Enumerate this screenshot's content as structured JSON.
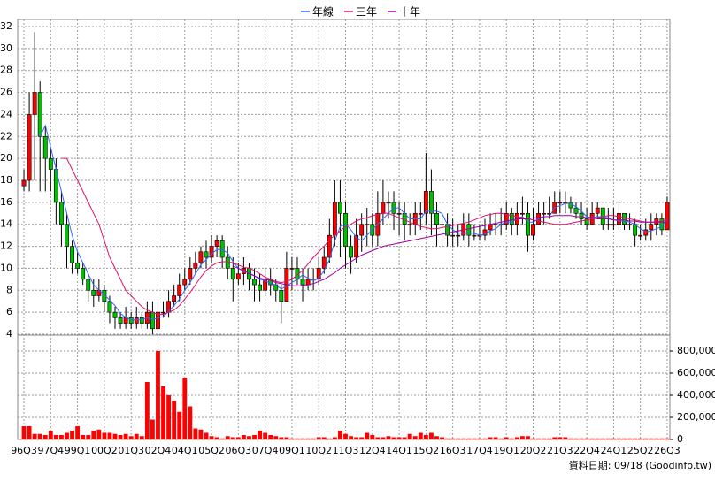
{
  "chart_data": {
    "type": "candlestick",
    "categories": [
      "96Q3",
      null,
      null,
      null,
      null,
      "97Q4",
      null,
      null,
      null,
      null,
      "99Q1",
      null,
      null,
      null,
      null,
      "00Q2",
      null,
      null,
      null,
      null,
      "01Q3",
      null,
      null,
      null,
      null,
      "02Q4",
      null,
      null,
      null,
      null,
      "04Q1",
      null,
      null,
      null,
      null,
      "05Q2",
      null,
      null,
      null,
      null,
      "06Q3",
      null,
      null,
      null,
      null,
      "07Q4",
      null,
      null,
      null,
      null,
      "09Q1",
      null,
      null,
      null,
      null,
      "10Q2",
      null,
      null,
      null,
      null,
      "11Q3",
      null,
      null,
      null,
      null,
      "12Q4",
      null,
      null,
      null,
      null,
      "14Q1",
      null,
      null,
      null,
      null,
      "15Q2",
      null,
      null,
      null,
      null,
      "16Q3",
      null,
      null,
      null,
      null,
      "17Q4",
      null,
      null,
      null,
      null,
      "19Q1",
      null,
      null,
      null,
      null,
      "20Q2",
      null,
      null,
      null,
      null,
      "21Q3",
      null,
      null,
      null,
      null,
      "22Q4",
      null,
      null,
      null,
      null,
      "24Q1",
      null,
      null,
      null,
      null,
      "25Q2",
      null,
      null,
      null,
      null,
      "26Q3"
    ],
    "open": [
      17.5,
      18,
      24,
      26,
      22,
      20,
      19,
      16,
      14,
      12,
      10.5,
      10,
      9,
      8,
      7.5,
      8,
      7,
      6,
      5.5,
      5,
      5.5,
      5,
      5.5,
      5,
      6,
      4.5,
      6,
      6,
      7,
      7.5,
      8.5,
      9,
      10,
      10.5,
      11.5,
      11,
      12,
      12.5,
      11,
      10,
      9,
      9.5,
      10,
      9,
      8.5,
      8,
      9,
      8.5,
      8,
      7,
      10,
      10,
      9,
      8.5,
      9,
      9,
      10,
      11,
      13,
      16,
      15,
      12,
      11,
      13,
      14,
      14,
      13,
      15,
      16,
      16,
      15,
      15,
      14,
      14,
      15,
      15,
      17,
      15,
      14,
      14,
      13,
      13,
      13,
      14,
      13,
      13,
      13,
      13.5,
      14,
      14,
      14,
      15,
      14,
      15,
      15,
      13,
      14,
      15,
      15,
      15,
      16,
      16,
      16,
      15.5,
      15,
      14.5,
      14,
      15,
      15.5,
      14,
      14,
      14,
      15,
      14,
      14,
      13,
      13,
      13.5,
      14,
      14.5,
      13.5
    ],
    "high": [
      19,
      26,
      31.5,
      27,
      23,
      21,
      20,
      17,
      15,
      12.5,
      11.5,
      10.5,
      9.5,
      9,
      9,
      8.5,
      7.5,
      6.5,
      6,
      6.5,
      6,
      6.5,
      6,
      7,
      7,
      7,
      7,
      8,
      8.5,
      9.5,
      10,
      11,
      11.5,
      12,
      12.5,
      13,
      13,
      13,
      12,
      11,
      10.5,
      11,
      10.5,
      10,
      9.5,
      10,
      10,
      9,
      8.5,
      11.5,
      11,
      11,
      10,
      10,
      10,
      11,
      12,
      14.5,
      18,
      18,
      16,
      13,
      14.5,
      15,
      15.5,
      15,
      17,
      18,
      17,
      17,
      16,
      16,
      15,
      16,
      16,
      20.5,
      19,
      16,
      15,
      15,
      14.5,
      14,
      15,
      15,
      14,
      14,
      14.5,
      15,
      15,
      15.5,
      16,
      15.5,
      16,
      16.5,
      16,
      15.5,
      16,
      16,
      16.5,
      17,
      17,
      17,
      16.5,
      16,
      16,
      15.5,
      16,
      16,
      15.5,
      15.5,
      15.5,
      16,
      15,
      15,
      14.5,
      14,
      14.5,
      15,
      15,
      15,
      16.5
    ],
    "low": [
      17,
      17,
      18,
      17,
      17,
      17,
      14,
      12,
      10,
      9.5,
      9.5,
      8.5,
      7,
      6.5,
      7,
      6,
      5,
      4.5,
      4.5,
      4.5,
      4.5,
      4.5,
      4.5,
      4.5,
      4,
      4,
      5.5,
      5.5,
      6.5,
      7,
      8,
      8.5,
      9.5,
      10,
      10,
      10.5,
      11,
      10,
      9,
      7,
      8.5,
      8.5,
      8,
      7,
      7,
      7.5,
      7.5,
      7,
      5,
      7,
      8,
      8.5,
      7,
      8,
      8,
      8.5,
      9.5,
      10.5,
      12,
      11,
      10,
      9.5,
      10.5,
      11.5,
      12,
      12,
      12,
      14,
      14.5,
      13.5,
      13,
      12.5,
      13,
      13,
      13.5,
      14,
      13,
      12,
      12,
      12,
      12,
      12,
      12.5,
      12,
      12.5,
      12.5,
      12.5,
      13,
      13,
      13,
      13.5,
      13,
      13,
      14,
      11.5,
      12.5,
      14,
      14,
      14.5,
      15,
      15,
      15,
      15,
      14.5,
      14,
      13.5,
      14,
      14.5,
      13.5,
      13.5,
      13.5,
      13.5,
      13.5,
      13.5,
      12,
      12.5,
      12.5,
      12.5,
      13,
      13,
      13.5
    ],
    "close": [
      18,
      24,
      26,
      22,
      20,
      19,
      16,
      14,
      12,
      10.5,
      10,
      9,
      8,
      7.5,
      8,
      7,
      6,
      5.5,
      5,
      5.5,
      5,
      5.5,
      5,
      6,
      4.5,
      6,
      6,
      7,
      7.5,
      8.5,
      9,
      10,
      10.5,
      11.5,
      11,
      12,
      12.5,
      11,
      10,
      9,
      9.5,
      10,
      9,
      8.5,
      8,
      9,
      8.5,
      8,
      7,
      10,
      10,
      9,
      8.5,
      9,
      9,
      10,
      11,
      13,
      16,
      15,
      12,
      11,
      13,
      14,
      14,
      13,
      15,
      16,
      16,
      15,
      15,
      14,
      14,
      15,
      15,
      17,
      15,
      14,
      14,
      13,
      13,
      13,
      14,
      13,
      13,
      13,
      13.5,
      14,
      14,
      14,
      15,
      14,
      15,
      15,
      13,
      14,
      15,
      15,
      15,
      16,
      16,
      16,
      15.5,
      15,
      14.5,
      14,
      15,
      15.5,
      14,
      14,
      14,
      15,
      14,
      14,
      13,
      13,
      13.5,
      14,
      14.5,
      13.5,
      16
    ],
    "up_color": "#ff0000",
    "down_color": "#00c000",
    "series": [
      {
        "name": "年線",
        "color": "#3366ff",
        "values": [
          null,
          null,
          null,
          22,
          23,
          21,
          19,
          17,
          15,
          13,
          11.5,
          10.5,
          9.5,
          8.5,
          8,
          7.6,
          7.1,
          6.6,
          5.9,
          5.5,
          5.3,
          5.3,
          5.3,
          5.5,
          5.3,
          5.5,
          5.6,
          6.1,
          6.6,
          7.2,
          8,
          8.7,
          9.5,
          10.3,
          10.8,
          11.3,
          11.7,
          11.7,
          11.4,
          10.6,
          10,
          9.7,
          9.6,
          9.3,
          9,
          8.9,
          8.6,
          8.5,
          8.1,
          8.4,
          8.7,
          9,
          9.4,
          9.1,
          8.9,
          9.1,
          9.8,
          10.8,
          12.5,
          13.8,
          14,
          13.5,
          12.8,
          12.5,
          13,
          13.5,
          14,
          14.5,
          15,
          15.5,
          15.5,
          15,
          14.5,
          14.5,
          14.5,
          15.2,
          15.2,
          15.2,
          15,
          14,
          13.5,
          13.2,
          13.2,
          13.2,
          13.2,
          13,
          13.1,
          13.4,
          13.6,
          14,
          14.2,
          14.2,
          14.5,
          14.7,
          14.2,
          14.2,
          14.5,
          14.7,
          14.7,
          15.5,
          15.7,
          15.9,
          15.9,
          15.6,
          15.2,
          14.7,
          14.6,
          14.7,
          14.7,
          14.6,
          14.4,
          14.3,
          14.3,
          14.2,
          14,
          13.6,
          13.3,
          13.4,
          13.6,
          13.8,
          14.5
        ]
      },
      {
        "name": "三年",
        "color": "#e0106a",
        "values": [
          null,
          null,
          null,
          null,
          null,
          null,
          null,
          20,
          20,
          19,
          18,
          17,
          16,
          15,
          14,
          12.5,
          11,
          10,
          9,
          8,
          7.5,
          7,
          6.5,
          6.2,
          6,
          5.8,
          5.8,
          6,
          6.2,
          6.6,
          7.2,
          7.8,
          8.5,
          9.2,
          9.8,
          10.2,
          10.5,
          10.6,
          10.6,
          10.5,
          10.3,
          10.1,
          10,
          9.8,
          9.5,
          9.2,
          9,
          8.8,
          8.7,
          8.8,
          9,
          9.4,
          9.8,
          10.4,
          11,
          11.5,
          12,
          12.6,
          13,
          13.4,
          13.8,
          14,
          14.3,
          14.5,
          14.6,
          14.8,
          14.9,
          15,
          15,
          14.8,
          14.6,
          14.4,
          14.2,
          14,
          13.8,
          13.7,
          13.6,
          13.6,
          13.7,
          13.8,
          13.9,
          14,
          14.1,
          14.2,
          14.4,
          14.6,
          14.8,
          14.9,
          15,
          15,
          14.9,
          14.8,
          14.7,
          14.6,
          14.5,
          14.4,
          14.3,
          14.2,
          14.1,
          14,
          14,
          14,
          14.1,
          14.2,
          14.3,
          14.4,
          14.5,
          14.6,
          14.7,
          14.8,
          14.8,
          14.7,
          14.6,
          14.5,
          14.4,
          14.3,
          14.2,
          14.2,
          14.2,
          14.3,
          14.4
        ]
      },
      {
        "name": "十年",
        "color": "#a000a0",
        "values": [
          null,
          null,
          null,
          null,
          null,
          null,
          null,
          null,
          null,
          null,
          null,
          null,
          null,
          null,
          null,
          null,
          null,
          null,
          null,
          null,
          null,
          null,
          null,
          null,
          null,
          null,
          null,
          null,
          null,
          null,
          null,
          null,
          null,
          null,
          null,
          null,
          null,
          null,
          null,
          10.2,
          10,
          9.8,
          9.5,
          9.3,
          9.1,
          9,
          8.9,
          8.7,
          8.6,
          8.5,
          8.4,
          8.4,
          8.4,
          8.5,
          8.6,
          8.8,
          9,
          9.3,
          9.6,
          10,
          10.3,
          10.6,
          10.9,
          11.2,
          11.4,
          11.6,
          11.8,
          12,
          12.1,
          12.2,
          12.3,
          12.4,
          12.5,
          12.6,
          12.7,
          12.8,
          12.9,
          13,
          13.1,
          13.2,
          13.3,
          13.4,
          13.5,
          13.6,
          13.7,
          13.8,
          13.9,
          14,
          14.1,
          14.2,
          14.3,
          14.4,
          14.5,
          14.5,
          14.5,
          14.6,
          14.6,
          14.7,
          14.7,
          14.8,
          14.8,
          14.8,
          14.8,
          14.7,
          14.7,
          14.6,
          14.6,
          14.5,
          14.5,
          14.5,
          14.4,
          14.4,
          14.4,
          14.3,
          14.3,
          14.2,
          14.2,
          14.2,
          14.2,
          14.2,
          14.2
        ]
      }
    ],
    "volume": {
      "color": "#ff0000",
      "axis": "y2",
      "values": [
        120000,
        120000,
        50000,
        50000,
        40000,
        80000,
        40000,
        40000,
        60000,
        80000,
        120000,
        40000,
        40000,
        80000,
        90000,
        60000,
        60000,
        50000,
        40000,
        50000,
        30000,
        50000,
        30000,
        520000,
        180000,
        800000,
        480000,
        400000,
        350000,
        250000,
        560000,
        300000,
        100000,
        90000,
        60000,
        30000,
        20000,
        10000,
        30000,
        20000,
        20000,
        40000,
        30000,
        40000,
        80000,
        60000,
        40000,
        30000,
        20000,
        20000,
        10000,
        10000,
        10000,
        10000,
        10000,
        20000,
        20000,
        10000,
        20000,
        80000,
        50000,
        30000,
        20000,
        20000,
        60000,
        40000,
        20000,
        20000,
        30000,
        20000,
        20000,
        20000,
        50000,
        30000,
        60000,
        40000,
        60000,
        30000,
        20000,
        10000,
        10000,
        10000,
        10000,
        10000,
        10000,
        10000,
        10000,
        20000,
        20000,
        10000,
        20000,
        10000,
        20000,
        30000,
        30000,
        10000,
        10000,
        10000,
        10000,
        20000,
        20000,
        20000,
        10000,
        10000,
        10000,
        10000,
        10000,
        10000,
        10000,
        10000,
        10000,
        10000,
        10000,
        10000,
        10000,
        10000,
        10000,
        10000,
        10000,
        10000,
        10000
      ]
    },
    "ylim": [
      4,
      32
    ],
    "yticks": [
      4,
      6,
      8,
      10,
      12,
      14,
      16,
      18,
      20,
      22,
      24,
      26,
      28,
      30,
      32
    ],
    "y2lim": [
      0,
      936000
    ],
    "y2ticks": [
      0,
      {
        "value": 200000,
        "label": "200,000"
      },
      {
        "value": 400000,
        "label": "400,000"
      },
      {
        "value": 600000,
        "label": "600,000"
      },
      {
        "value": 800000,
        "label": "800,000"
      }
    ],
    "grid": true,
    "legend": "top",
    "footnote": "資料日期: 09/18 (Goodinfo.tw)"
  }
}
